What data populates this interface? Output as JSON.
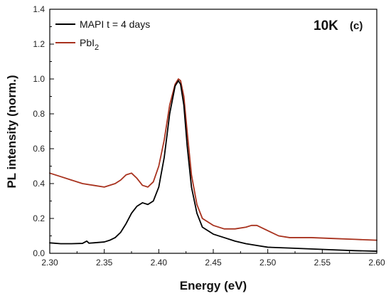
{
  "chart_data": {
    "type": "line",
    "xlabel": "Energy (eV)",
    "ylabel": "PL intensity (norm.)",
    "xlim": [
      2.3,
      2.6
    ],
    "ylim": [
      0.0,
      1.4
    ],
    "x_ticks": [
      "2.30",
      "2.35",
      "2.40",
      "2.45",
      "2.50",
      "2.55",
      "2.60"
    ],
    "y_ticks": [
      "0.0",
      "0.2",
      "0.4",
      "0.6",
      "0.8",
      "1.0",
      "1.2",
      "1.4"
    ],
    "x_tick_values": [
      2.3,
      2.35,
      2.4,
      2.45,
      2.5,
      2.55,
      2.6
    ],
    "y_tick_values": [
      0.0,
      0.2,
      0.4,
      0.6,
      0.8,
      1.0,
      1.2,
      1.4
    ],
    "annotation_main": "10K",
    "annotation_sub": "(c)",
    "legend_placement": "top-left",
    "series": [
      {
        "name": "MAPI t = 4 days",
        "color": "#000000",
        "x": [
          2.3,
          2.31,
          2.32,
          2.33,
          2.334,
          2.336,
          2.34,
          2.35,
          2.355,
          2.36,
          2.365,
          2.37,
          2.375,
          2.38,
          2.385,
          2.39,
          2.395,
          2.4,
          2.405,
          2.41,
          2.415,
          2.418,
          2.42,
          2.423,
          2.426,
          2.43,
          2.435,
          2.44,
          2.45,
          2.46,
          2.47,
          2.48,
          2.49,
          2.5,
          2.52,
          2.54,
          2.56,
          2.58,
          2.6
        ],
        "y": [
          0.06,
          0.055,
          0.055,
          0.057,
          0.07,
          0.058,
          0.06,
          0.065,
          0.075,
          0.09,
          0.12,
          0.17,
          0.23,
          0.27,
          0.29,
          0.28,
          0.3,
          0.38,
          0.55,
          0.8,
          0.96,
          0.99,
          0.97,
          0.85,
          0.62,
          0.38,
          0.23,
          0.15,
          0.11,
          0.09,
          0.07,
          0.055,
          0.045,
          0.035,
          0.03,
          0.025,
          0.02,
          0.015,
          0.012
        ]
      },
      {
        "name": "PbI2",
        "name_main": "PbI",
        "name_sub": "2",
        "color": "#a8321e",
        "x": [
          2.3,
          2.31,
          2.32,
          2.33,
          2.34,
          2.35,
          2.36,
          2.365,
          2.37,
          2.375,
          2.38,
          2.385,
          2.39,
          2.395,
          2.4,
          2.405,
          2.41,
          2.415,
          2.418,
          2.42,
          2.423,
          2.426,
          2.43,
          2.435,
          2.44,
          2.45,
          2.46,
          2.47,
          2.48,
          2.485,
          2.49,
          2.5,
          2.51,
          2.52,
          2.54,
          2.56,
          2.58,
          2.6
        ],
        "y": [
          0.46,
          0.44,
          0.42,
          0.4,
          0.39,
          0.38,
          0.4,
          0.42,
          0.45,
          0.46,
          0.43,
          0.39,
          0.38,
          0.41,
          0.5,
          0.65,
          0.85,
          0.97,
          1.0,
          0.99,
          0.9,
          0.7,
          0.45,
          0.28,
          0.2,
          0.16,
          0.14,
          0.14,
          0.15,
          0.16,
          0.16,
          0.13,
          0.1,
          0.09,
          0.09,
          0.085,
          0.08,
          0.075
        ]
      }
    ]
  }
}
